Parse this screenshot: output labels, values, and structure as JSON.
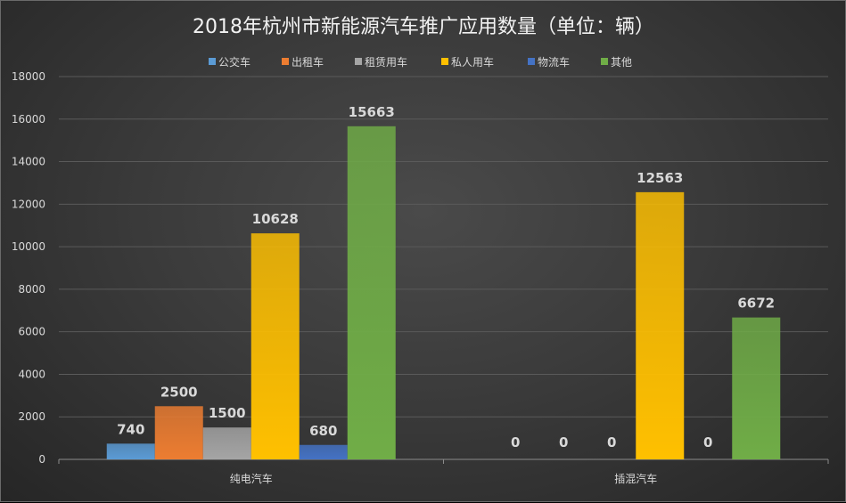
{
  "chart_data": {
    "type": "bar",
    "title": "2018年杭州市新能源汽车推广应用数量（单位：辆）",
    "categories": [
      "纯电汽车",
      "插混汽车"
    ],
    "series": [
      {
        "name": "公交车",
        "values": [
          740,
          0
        ],
        "color": "#5b9bd5"
      },
      {
        "name": "出租车",
        "values": [
          2500,
          null
        ],
        "color": "#ed7d31"
      },
      {
        "name": "租赁用车",
        "values": [
          1500,
          0
        ],
        "color": "#a5a5a5"
      },
      {
        "name": "私人用车",
        "values": [
          10628,
          12563
        ],
        "color": "#ffc000"
      },
      {
        "name": "物流车",
        "values": [
          680,
          0
        ],
        "color": "#4472c4"
      },
      {
        "name": "其他",
        "values": [
          15663,
          6672
        ],
        "color": "#70ad47"
      }
    ],
    "ylim": [
      0,
      18000
    ],
    "yticks": [
      "0",
      "2000",
      "4000",
      "6000",
      "8000",
      "10000",
      "12000",
      "14000",
      "16000",
      "18000"
    ],
    "data_labels": [
      [
        "740",
        "0"
      ],
      [
        "2500",
        "0"
      ],
      [
        "1500",
        "0"
      ],
      [
        "10628",
        "12563"
      ],
      [
        "680",
        "0"
      ],
      [
        "15663",
        "6672"
      ]
    ],
    "grid": true,
    "legend_position": "top"
  }
}
